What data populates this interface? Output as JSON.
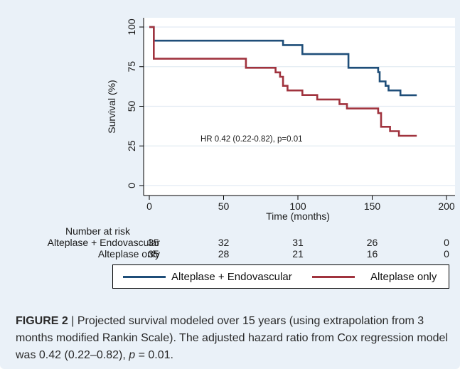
{
  "chart_data": {
    "type": "line",
    "subtype": "kaplan-meier-step",
    "xlabel": "Time (months)",
    "ylabel": "Survival (%)",
    "xlim": [
      0,
      200
    ],
    "ylim": [
      0,
      100
    ],
    "xticks": [
      0,
      50,
      100,
      150,
      200
    ],
    "yticks": [
      0,
      25,
      50,
      75,
      100
    ],
    "grid": "horizontal",
    "annotation": "HR 0.42 (0.22-0.82), p=0.01",
    "series": [
      {
        "name": "Alteplase + Endovascular",
        "color": "#1f4e79",
        "x": [
          0,
          3,
          3,
          90,
          90,
          103,
          103,
          134,
          134,
          154,
          154,
          155,
          155,
          159,
          159,
          161,
          161,
          169,
          169,
          180
        ],
        "y": [
          100,
          100,
          91.4,
          91.4,
          88.6,
          88.6,
          82.9,
          82.9,
          74.3,
          74.3,
          71.5,
          71.5,
          65.7,
          65.7,
          62.9,
          62.9,
          60,
          60,
          57,
          57
        ]
      },
      {
        "name": "Alteplase only",
        "color": "#a0333e",
        "x": [
          0,
          3,
          3,
          65,
          65,
          85,
          85,
          88,
          88,
          90,
          90,
          93,
          93,
          103,
          103,
          113,
          113,
          128,
          128,
          133,
          133,
          154,
          154,
          156,
          156,
          162,
          162,
          168,
          168,
          180
        ],
        "y": [
          100,
          100,
          80,
          80,
          74.3,
          74.3,
          71.4,
          71.4,
          68.6,
          68.6,
          62.9,
          62.9,
          60,
          60,
          57.1,
          57.1,
          54.3,
          54.3,
          51.4,
          51.4,
          48.6,
          48.6,
          45.7,
          45.7,
          37.1,
          37.1,
          34.3,
          34.3,
          31.4,
          31.4
        ]
      }
    ]
  },
  "risk_table": {
    "title": "Number at risk",
    "time_points": [
      0,
      50,
      100,
      150,
      200
    ],
    "rows": [
      {
        "label": "Alteplase + Endovascular",
        "values": [
          "35",
          "32",
          "31",
          "26",
          "0"
        ]
      },
      {
        "label": "Alteplase only",
        "values": [
          "35",
          "28",
          "21",
          "16",
          "0"
        ]
      }
    ]
  },
  "caption": {
    "figure_label": "FIGURE 2",
    "separator": " | ",
    "text_1": "Projected survival modeled over 15 years (using extrapolation from 3 months modified Rankin Scale). The adjusted hazard ratio from Cox regression model was 0.42 (0.22–0.82), ",
    "p_symbol": "p",
    "text_2": " = 0.01."
  }
}
